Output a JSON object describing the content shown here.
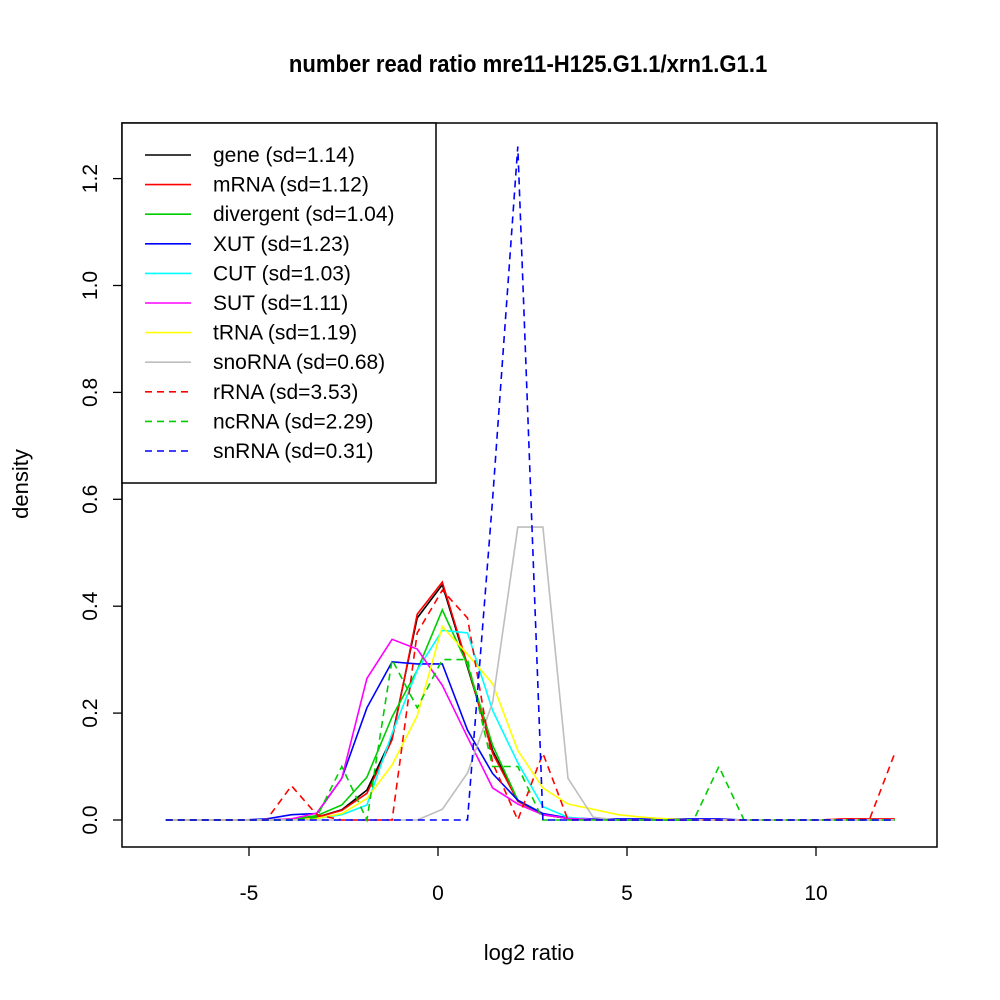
{
  "chart_data": {
    "type": "line",
    "title": "number read ratio mre11-H125.G1.1/xrn1.G1.1",
    "xlabel": "log2 ratio",
    "ylabel": "density",
    "xlim": [
      -8.4,
      13.1
    ],
    "ylim": [
      -0.05,
      1.3
    ],
    "xticks": [
      -5,
      0,
      5,
      10
    ],
    "xtick_labels": [
      "-5",
      "0",
      "5",
      "10"
    ],
    "yticks": [
      0,
      0.2,
      0.4,
      0.6,
      0.8,
      1.0,
      1.2
    ],
    "ytick_labels": [
      "0.0",
      "0.2",
      "0.4",
      "0.6",
      "0.8",
      "1.0",
      "1.2"
    ],
    "legend_position": "top-left",
    "x": [
      -7.2,
      -6.535,
      -5.87,
      -5.205,
      -4.54,
      -3.875,
      -3.21,
      -2.545,
      -1.88,
      -1.215,
      -0.55,
      0.115,
      0.78,
      1.445,
      2.11,
      2.775,
      3.44,
      4.105,
      4.77,
      5.435,
      6.1,
      6.765,
      7.43,
      8.095,
      8.76,
      9.425,
      10.09,
      10.755,
      11.42,
      12.085
    ],
    "series": [
      {
        "name": "gene (sd=1.14)",
        "color": "#000000",
        "dash": false,
        "values": [
          0,
          0,
          0,
          0,
          0,
          0.001,
          0.005,
          0.019,
          0.056,
          0.155,
          0.378,
          0.44,
          0.286,
          0.13,
          0.037,
          0.01,
          0.003,
          0.001,
          0.001,
          0.001,
          0.001,
          0.001,
          0,
          0,
          0,
          0,
          0,
          0,
          0,
          0.001
        ]
      },
      {
        "name": "mRNA (sd=1.12)",
        "color": "#ff0000",
        "dash": false,
        "values": [
          0,
          0,
          0,
          0,
          0,
          0.001,
          0.005,
          0.018,
          0.05,
          0.15,
          0.385,
          0.445,
          0.29,
          0.125,
          0.035,
          0.01,
          0.003,
          0.001,
          0.001,
          0.001,
          0.001,
          0.001,
          0,
          0,
          0,
          0,
          0,
          0.002,
          0.002,
          0.002
        ]
      },
      {
        "name": "divergent (sd=1.04)",
        "color": "#00cd00",
        "dash": false,
        "values": [
          0,
          0,
          0,
          0,
          0,
          0.002,
          0.008,
          0.028,
          0.08,
          0.193,
          0.28,
          0.393,
          0.29,
          0.14,
          0.037,
          0.01,
          0.003,
          0.001,
          0,
          0,
          0,
          0,
          0,
          0,
          0,
          0,
          0,
          0,
          0,
          0
        ]
      },
      {
        "name": "XUT (sd=1.23)",
        "color": "#0000ff",
        "dash": false,
        "values": [
          0,
          0,
          0,
          0,
          0.002,
          0.01,
          0.012,
          0.078,
          0.21,
          0.296,
          0.292,
          0.292,
          0.168,
          0.087,
          0.037,
          0.012,
          0.004,
          0.002,
          0.002,
          0.002,
          0.002,
          0.002,
          0.002,
          0,
          0,
          0,
          0,
          0,
          0,
          0
        ]
      },
      {
        "name": "CUT (sd=1.03)",
        "color": "#00ffff",
        "dash": false,
        "values": [
          0,
          0,
          0,
          0,
          0,
          0,
          0.003,
          0.01,
          0.028,
          0.162,
          0.28,
          0.355,
          0.35,
          0.205,
          0.107,
          0.025,
          0.005,
          0.001,
          0,
          0,
          0,
          0,
          0,
          0,
          0,
          0,
          0,
          0,
          0,
          0
        ]
      },
      {
        "name": "SUT (sd=1.11)",
        "color": "#ff00ff",
        "dash": false,
        "values": [
          0,
          0,
          0,
          0,
          0,
          0.002,
          0.013,
          0.078,
          0.265,
          0.338,
          0.32,
          0.252,
          0.155,
          0.06,
          0.03,
          0.01,
          0.003,
          0.001,
          0,
          0,
          0,
          0,
          0,
          0,
          0,
          0,
          0,
          0,
          0,
          0
        ]
      },
      {
        "name": "tRNA (sd=1.19)",
        "color": "#ffff00",
        "dash": false,
        "values": [
          0,
          0,
          0,
          0,
          0,
          0,
          0.003,
          0.012,
          0.04,
          0.103,
          0.195,
          0.362,
          0.31,
          0.255,
          0.13,
          0.06,
          0.03,
          0.02,
          0.01,
          0.005,
          0.002,
          0,
          0,
          0,
          0,
          0,
          0,
          0,
          0,
          0
        ]
      },
      {
        "name": "snoRNA (sd=0.68)",
        "color": "#bebebe",
        "dash": false,
        "values": [
          0,
          0,
          0,
          0,
          0,
          0,
          0,
          0,
          0,
          0,
          0,
          0.02,
          0.088,
          0.22,
          0.548,
          0.548,
          0.078,
          0.005,
          0,
          0,
          0,
          0,
          0,
          0,
          0,
          0,
          0,
          0,
          0,
          0
        ]
      },
      {
        "name": "rRNA (sd=3.53)",
        "color": "#ff0000",
        "dash": true,
        "values": [
          0,
          0,
          0,
          0,
          0,
          0.064,
          0.01,
          0,
          0,
          0,
          0.35,
          0.43,
          0.378,
          0.107,
          0,
          0.125,
          0,
          0,
          0,
          0,
          0,
          0,
          0,
          0,
          0,
          0,
          0,
          0.002,
          0.002,
          0.125
        ]
      },
      {
        "name": "ncRNA (sd=2.29)",
        "color": "#00cd00",
        "dash": true,
        "values": [
          0,
          0,
          0,
          0,
          0,
          0,
          0.005,
          0.1,
          0,
          0.3,
          0.21,
          0.3,
          0.3,
          0.1,
          0.1,
          0,
          0,
          0,
          0,
          0,
          0,
          0,
          0.1,
          0,
          0,
          0,
          0,
          0,
          0,
          0
        ]
      },
      {
        "name": "snRNA (sd=0.31)",
        "color": "#0000ff",
        "dash": true,
        "values": [
          0,
          0,
          0,
          0,
          0,
          0,
          0,
          0,
          0,
          0,
          0,
          0,
          0,
          0.6,
          1.26,
          0,
          0,
          0,
          0,
          0,
          0,
          0,
          0,
          0,
          0,
          0,
          0,
          0,
          0,
          0
        ]
      }
    ]
  }
}
